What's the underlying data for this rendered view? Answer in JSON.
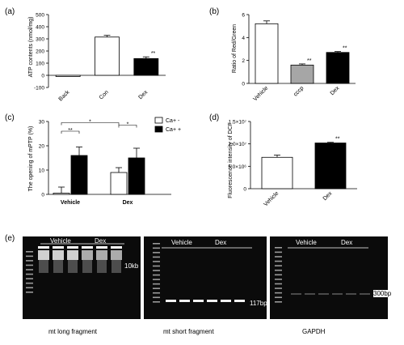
{
  "chart_data": [
    {
      "panel": "(a)",
      "type": "bar",
      "ylabel": "ATP contents (nmol/mg)",
      "categories": [
        "Back",
        "Con",
        "Dex"
      ],
      "values": [
        -10,
        315,
        138
      ],
      "errors": [
        0,
        14,
        14
      ],
      "fills": [
        "#ffffff",
        "#ffffff",
        "#000000"
      ],
      "sig": [
        "",
        "",
        "**"
      ],
      "ylim": [
        -100,
        500
      ],
      "yticks": [
        "-100",
        "0",
        "100",
        "200",
        "300",
        "400",
        "500"
      ]
    },
    {
      "panel": "(b)",
      "type": "bar",
      "ylabel": "Ratio of Red/Green",
      "categories": [
        "Vehicle",
        "cccp",
        "Dex"
      ],
      "values": [
        5.2,
        1.6,
        2.7
      ],
      "errors": [
        0.25,
        0.1,
        0.08
      ],
      "fills": [
        "#ffffff",
        "#a6a6a6",
        "#000000"
      ],
      "sig": [
        "",
        "**",
        "**"
      ],
      "ylim": [
        0,
        6
      ],
      "yticks": [
        "0",
        "2",
        "4",
        "6"
      ]
    },
    {
      "panel": "(c)",
      "type": "bar",
      "ylabel": "The opening of mPTP (%)",
      "categories": [
        "Vehicle",
        "Dex"
      ],
      "series": [
        {
          "name": "Ca+ -",
          "values": [
            0.5,
            9
          ],
          "errors": [
            2.5,
            2
          ],
          "fill": "#ffffff"
        },
        {
          "name": "Ca+ +",
          "values": [
            16,
            15
          ],
          "errors": [
            3.5,
            4
          ],
          "fill": "#000000"
        }
      ],
      "ylim": [
        0,
        30
      ],
      "yticks": [
        "0",
        "10",
        "20",
        "30"
      ],
      "brackets": [
        {
          "label": "**"
        },
        {
          "label": "*"
        },
        {
          "label": "*"
        }
      ]
    },
    {
      "panel": "(d)",
      "type": "bar",
      "ylabel": "Fluorescence intensity of DCF",
      "categories": [
        "Vehicle",
        "Dex"
      ],
      "values": [
        7000000,
        10200000
      ],
      "errors": [
        500000,
        150000
      ],
      "fills": [
        "#ffffff",
        "#000000"
      ],
      "sig": [
        "",
        "**"
      ],
      "ylim": [
        0,
        15000000
      ],
      "yticks": [
        "0",
        "5.0×10⁶",
        "1.0×10⁷",
        "1.5×10⁷"
      ]
    }
  ],
  "gels": {
    "panel": "(e)",
    "long": {
      "caption": "mt long fragment",
      "groups": [
        "Vehicle",
        "Dex"
      ],
      "band": "10kb"
    },
    "short": {
      "caption": "mt short fragment",
      "groups": [
        "Vehicle",
        "Dex"
      ],
      "band": "117bp"
    },
    "gapdh": {
      "caption": "GAPDH",
      "groups": [
        "Vehicle",
        "Dex"
      ],
      "band": "300bp"
    }
  }
}
